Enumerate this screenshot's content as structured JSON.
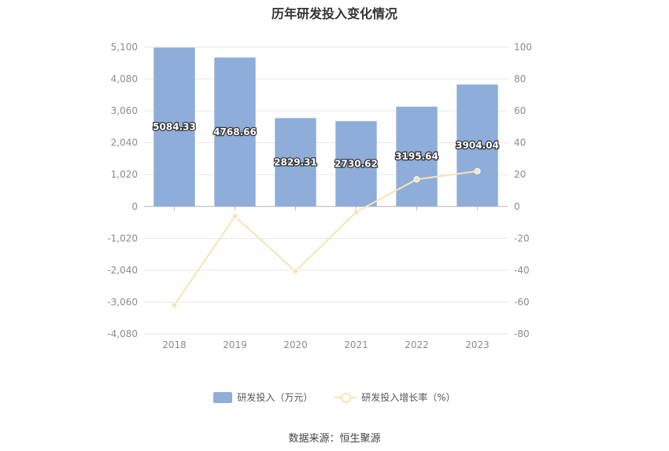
{
  "title": "历年研发投入变化情况",
  "legend": {
    "bar_label": "研发投入（万元）",
    "line_label": "研发投入增长率（%）"
  },
  "source": "数据来源：恒生聚源",
  "colors": {
    "bar": "#8eadd9",
    "line": "#fbe2b4",
    "grid": "#e6e6e6"
  },
  "chart_data": {
    "type": "bar",
    "title": "历年研发投入变化情况",
    "categories": [
      "2018",
      "2019",
      "2020",
      "2021",
      "2022",
      "2023"
    ],
    "series": [
      {
        "name": "研发投入（万元）",
        "type": "bar",
        "axis": "left",
        "values": [
          5084.33,
          4768.66,
          2829.31,
          2730.62,
          3195.64,
          3904.04
        ]
      },
      {
        "name": "研发投入增长率（%）",
        "type": "line",
        "axis": "right",
        "values": [
          -62.0,
          -6.21,
          -40.67,
          -3.49,
          17.03,
          22.17
        ]
      }
    ],
    "y_left": {
      "ticks": [
        "5,100",
        "4,080",
        "3,060",
        "2,040",
        "1,020",
        "0",
        "-1,020",
        "-2,040",
        "-3,060",
        "-4,080"
      ],
      "ylim": [
        -4080,
        5100
      ]
    },
    "y_right": {
      "ticks": [
        "100",
        "80",
        "60",
        "40",
        "20",
        "0",
        "-20",
        "-40",
        "-60",
        "-80"
      ],
      "ylim": [
        -80,
        100
      ]
    },
    "grid": true,
    "legend_position": "bottom"
  }
}
